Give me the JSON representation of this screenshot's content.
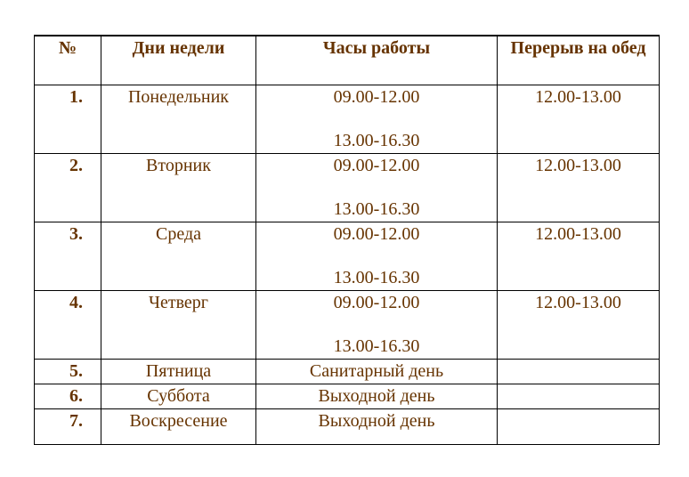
{
  "headers": [
    "№",
    "Дни недели",
    "Часы работы",
    "Перерыв на обед"
  ],
  "rows": [
    {
      "num": "1.",
      "day": "Понедельник",
      "hours1": "09.00-12.00",
      "hours2": "13.00-16.30",
      "break": "12.00-13.00"
    },
    {
      "num": "2.",
      "day": "Вторник",
      "hours1": "09.00-12.00",
      "hours2": "13.00-16.30",
      "break": "12.00-13.00"
    },
    {
      "num": "3.",
      "day": "Среда",
      "hours1": "09.00-12.00",
      "hours2": "13.00-16.30",
      "break": "12.00-13.00"
    },
    {
      "num": "4.",
      "day": "Четверг",
      "hours1": "09.00-12.00",
      "hours2": "13.00-16.30",
      "break": "12.00-13.00"
    },
    {
      "num": "5.",
      "day": "Пятница",
      "hours1": "Санитарный день",
      "break": ""
    },
    {
      "num": "6.",
      "day": "Суббота",
      "hours1": "Выходной день",
      "break": ""
    },
    {
      "num": "7.",
      "day": "Воскресение",
      "hours1": "Выходной день",
      "break": ""
    }
  ],
  "colors": {
    "text": "#663300",
    "border": "#000000"
  }
}
